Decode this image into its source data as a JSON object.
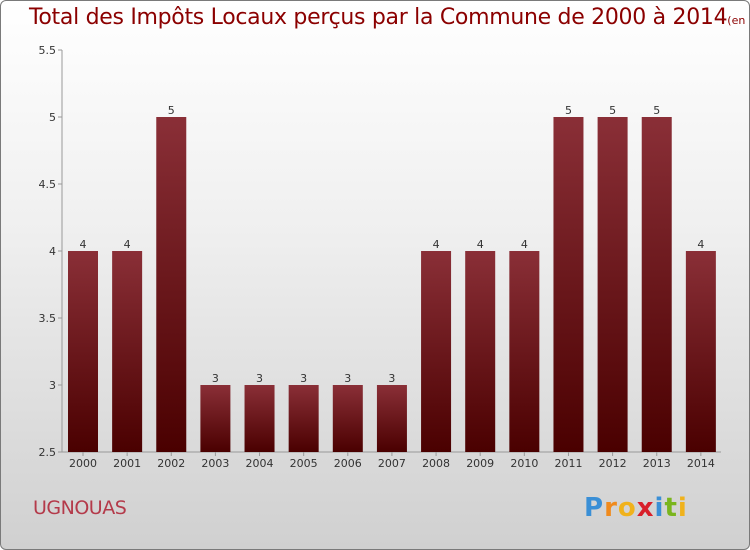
{
  "header": {
    "title": "Total des Impôts Locaux perçus par la Commune de 2000 à 2014",
    "unit": "(en milliers d'€)"
  },
  "footer": {
    "commune": "UGNOUAS",
    "logo_text": "Proxiti"
  },
  "colors": {
    "bar_top": "#8a2f37",
    "bar_bottom": "#4a0000",
    "title": "#8b0000",
    "commune": "#b43a4a"
  },
  "chart_data": {
    "type": "bar",
    "title": "Total des Impôts Locaux perçus par la Commune de 2000 à 2014",
    "unit": "(en milliers d'€)",
    "categories": [
      "2000",
      "2001",
      "2002",
      "2003",
      "2004",
      "2005",
      "2006",
      "2007",
      "2008",
      "2009",
      "2010",
      "2011",
      "2012",
      "2013",
      "2014"
    ],
    "values": [
      4,
      4,
      5,
      3,
      3,
      3,
      3,
      3,
      4,
      4,
      4,
      5,
      5,
      5,
      4
    ],
    "ylim": [
      2.5,
      5.5
    ],
    "yticks": [
      2.5,
      3,
      3.5,
      4,
      4.5,
      5,
      5.5
    ],
    "ytick_labels": [
      "2.5",
      "3",
      "3.5",
      "4",
      "4.5",
      "5",
      "5.5"
    ],
    "xlabel": "",
    "ylabel": "",
    "grid": false,
    "legend": "none"
  }
}
